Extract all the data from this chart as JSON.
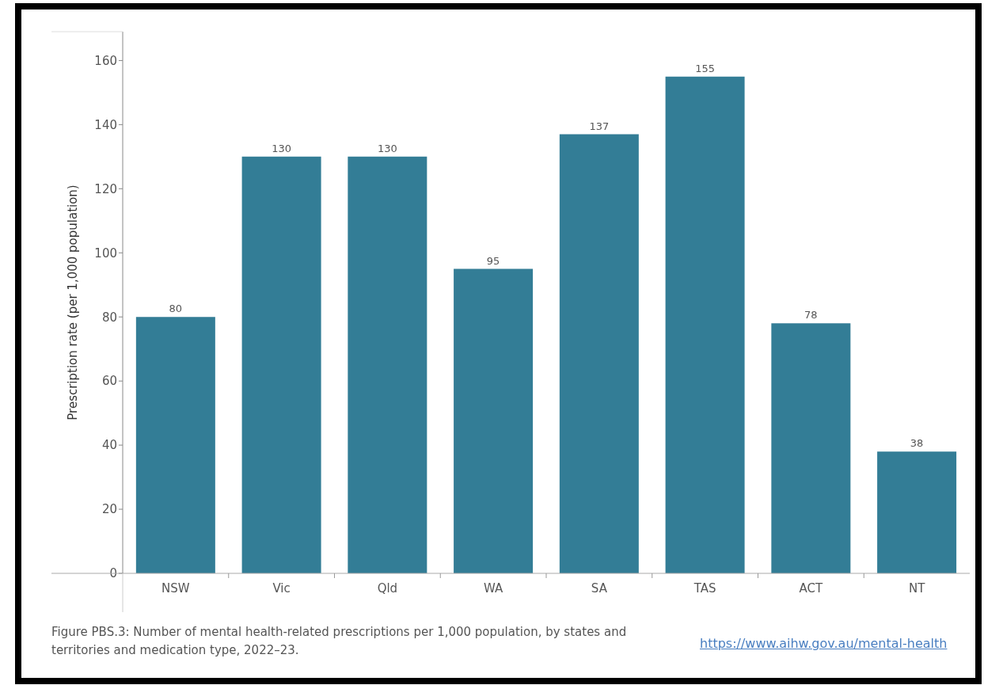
{
  "chart_data": {
    "type": "bar",
    "ylabel": "Prescription rate (per 1,000 population)",
    "categories": [
      "NSW",
      "Vic",
      "Qld",
      "WA",
      "SA",
      "TAS",
      "ACT",
      "NT"
    ],
    "values": [
      80,
      130,
      130,
      95,
      137,
      155,
      78,
      38
    ],
    "color": "#337d96",
    "ylim": [
      0,
      169
    ],
    "yticks": [
      0,
      20,
      40,
      60,
      80,
      100,
      120,
      140,
      160
    ],
    "data_labels": true,
    "annotations": [
      "Figure PBS.3: Number of mental health-related prescriptions per 1,000 population, by states and territories and medication type, 2022–23.",
      "https://www.aihw.gov.au/mental-health"
    ]
  }
}
